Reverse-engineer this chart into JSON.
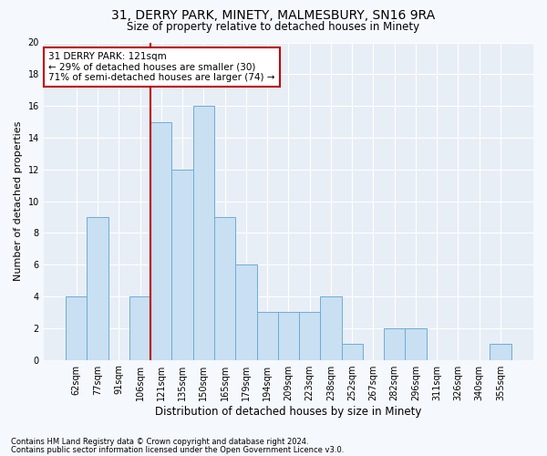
{
  "title": "31, DERRY PARK, MINETY, MALMESBURY, SN16 9RA",
  "subtitle": "Size of property relative to detached houses in Minety",
  "xlabel": "Distribution of detached houses by size in Minety",
  "ylabel": "Number of detached properties",
  "categories": [
    "62sqm",
    "77sqm",
    "91sqm",
    "106sqm",
    "121sqm",
    "135sqm",
    "150sqm",
    "165sqm",
    "179sqm",
    "194sqm",
    "209sqm",
    "223sqm",
    "238sqm",
    "252sqm",
    "267sqm",
    "282sqm",
    "296sqm",
    "311sqm",
    "326sqm",
    "340sqm",
    "355sqm"
  ],
  "values": [
    4,
    9,
    0,
    4,
    15,
    12,
    16,
    9,
    6,
    3,
    3,
    3,
    4,
    1,
    0,
    2,
    2,
    0,
    0,
    0,
    1
  ],
  "bar_color": "#c9dff2",
  "bar_edge_color": "#6aaed6",
  "highlight_index": 4,
  "highlight_line_color": "#c00000",
  "ylim": [
    0,
    20
  ],
  "yticks": [
    0,
    2,
    4,
    6,
    8,
    10,
    12,
    14,
    16,
    18,
    20
  ],
  "annotation_line1": "31 DERRY PARK: 121sqm",
  "annotation_line2": "← 29% of detached houses are smaller (30)",
  "annotation_line3": "71% of semi-detached houses are larger (74) →",
  "annotation_box_facecolor": "#ffffff",
  "annotation_box_edgecolor": "#c00000",
  "footnote1": "Contains HM Land Registry data © Crown copyright and database right 2024.",
  "footnote2": "Contains public sector information licensed under the Open Government Licence v3.0.",
  "fig_facecolor": "#f5f8fc",
  "axes_facecolor": "#e8eef6",
  "grid_color": "#ffffff",
  "title_fontsize": 10,
  "subtitle_fontsize": 8.5,
  "tick_fontsize": 7,
  "ylabel_fontsize": 8,
  "xlabel_fontsize": 8.5,
  "footnote_fontsize": 6,
  "annotation_fontsize": 7.5
}
